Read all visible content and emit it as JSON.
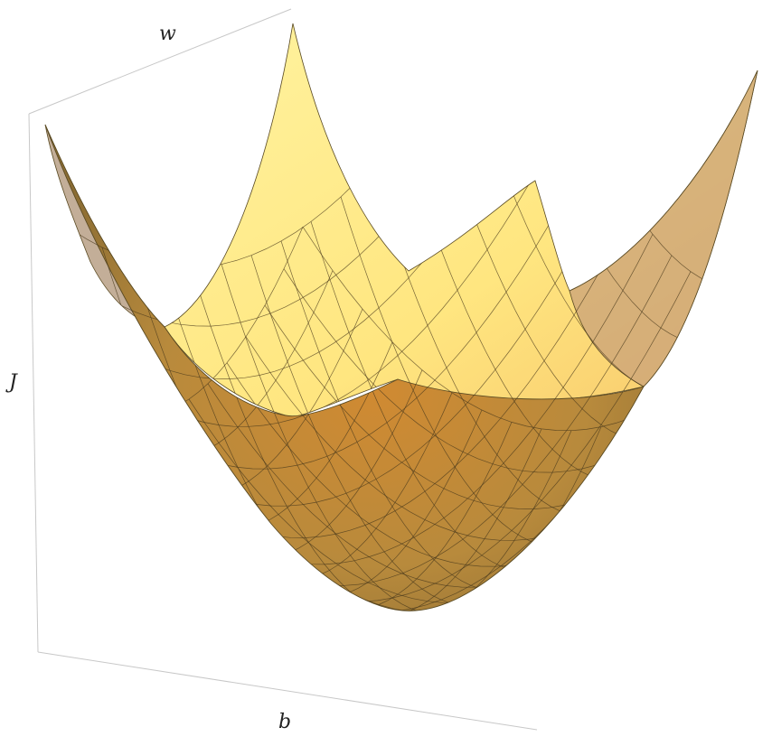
{
  "chart_data": {
    "type": "surface",
    "function": "J = w^2 + b^2",
    "xlabel": "b",
    "ylabel": "w",
    "zlabel": "J",
    "xlim": [
      -1,
      1
    ],
    "ylim": [
      -1,
      1
    ],
    "mesh_lines": 20,
    "box": true,
    "ticks": false,
    "colors": {
      "surface_light": "#fff08a",
      "surface_mid": "#f0b24a",
      "surface_dark": "#8c6a2e",
      "mesh": "#4a3a1c",
      "box": "#bdbdbd"
    }
  }
}
